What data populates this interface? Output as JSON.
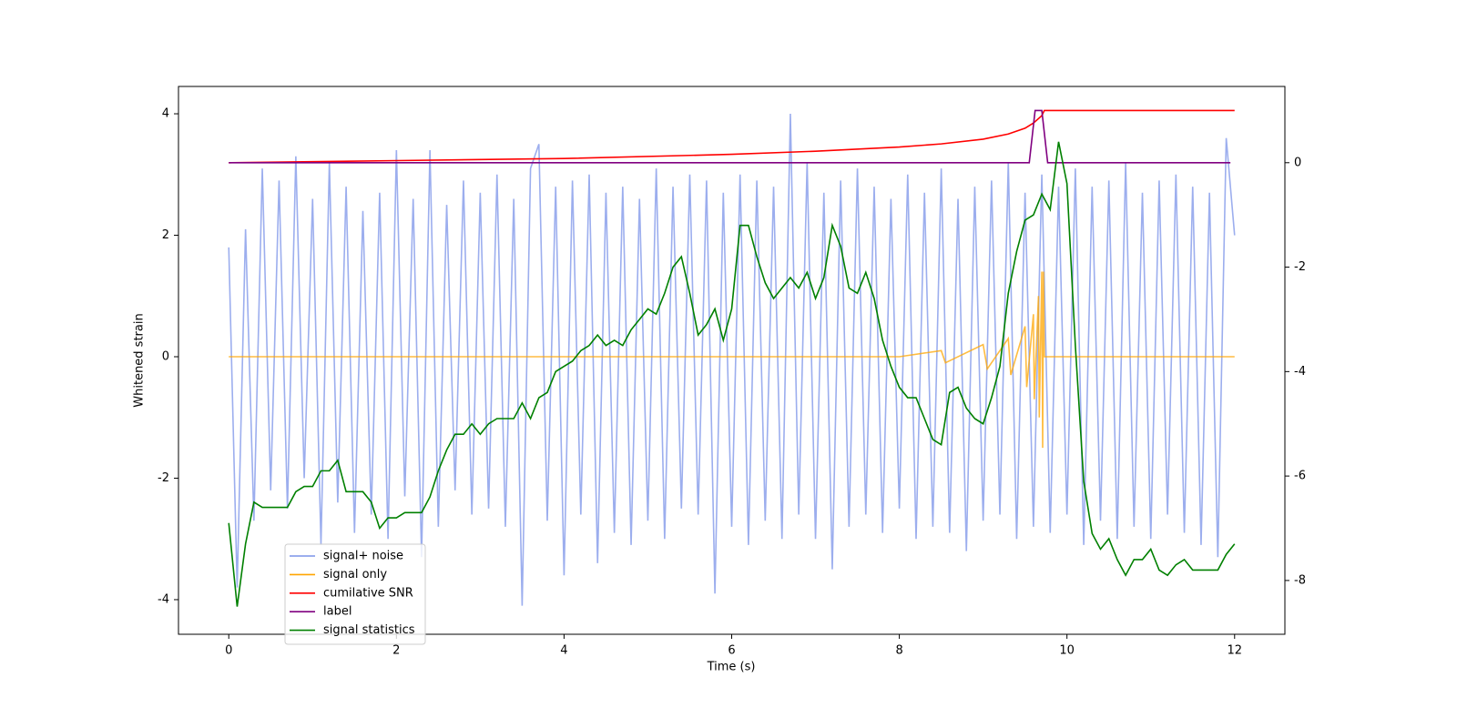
{
  "chart_data": {
    "type": "line",
    "xlabel": "Time (s)",
    "ylabel": "Whitened strain",
    "xlim": [
      -0.6,
      12.6
    ],
    "ylim": [
      -4.57,
      4.45
    ],
    "y2lim": [
      -9.03,
      1.46
    ],
    "xticks": [
      0,
      2,
      4,
      6,
      8,
      10,
      12
    ],
    "yticks": [
      -4,
      -2,
      0,
      2,
      4
    ],
    "y2ticks": [
      -8,
      -6,
      -4,
      -2,
      0
    ],
    "legend_loc": "lower left",
    "x": [
      0,
      0.1,
      0.2,
      0.3,
      0.4,
      0.5,
      0.6,
      0.7,
      0.8,
      0.9,
      1,
      1.1,
      1.2,
      1.3,
      1.4,
      1.5,
      1.6,
      1.7,
      1.8,
      1.9,
      2,
      2.1,
      2.2,
      2.3,
      2.4,
      2.5,
      2.6,
      2.7,
      2.8,
      2.9,
      3,
      3.1,
      3.2,
      3.3,
      3.4,
      3.5,
      3.6,
      3.7,
      3.8,
      3.9,
      4,
      4.1,
      4.2,
      4.3,
      4.4,
      4.5,
      4.6,
      4.7,
      4.8,
      4.9,
      5,
      5.1,
      5.2,
      5.3,
      5.4,
      5.5,
      5.6,
      5.7,
      5.8,
      5.9,
      6,
      6.1,
      6.2,
      6.3,
      6.4,
      6.5,
      6.6,
      6.7,
      6.8,
      6.9,
      7,
      7.1,
      7.2,
      7.3,
      7.4,
      7.5,
      7.6,
      7.7,
      7.8,
      7.9,
      8,
      8.1,
      8.2,
      8.3,
      8.4,
      8.5,
      8.6,
      8.7,
      8.8,
      8.9,
      9,
      9.1,
      9.2,
      9.3,
      9.4,
      9.5,
      9.6,
      9.7,
      9.8,
      9.9,
      10,
      10.1,
      10.2,
      10.3,
      10.4,
      10.5,
      10.6,
      10.7,
      10.8,
      10.9,
      11,
      11.1,
      11.2,
      11.3,
      11.4,
      11.5,
      11.6,
      11.7,
      11.8,
      11.9,
      12
    ],
    "series": [
      {
        "name": "signal+ noise",
        "color": "#7b93e8",
        "axis": "y",
        "values": [
          1.8,
          -3.8,
          2.1,
          -2.7,
          3.1,
          -2.2,
          2.9,
          -2.5,
          3.3,
          -2.0,
          2.6,
          -3.1,
          3.2,
          -2.4,
          2.8,
          -2.9,
          2.4,
          -2.6,
          2.7,
          -3.0,
          3.4,
          -2.3,
          2.6,
          -3.3,
          3.4,
          -2.8,
          2.5,
          -2.2,
          2.9,
          -2.6,
          2.7,
          -2.5,
          3.0,
          -2.8,
          2.6,
          -4.1,
          3.1,
          3.5,
          -2.7,
          2.8,
          -3.6,
          2.9,
          -2.6,
          3.0,
          -3.4,
          2.7,
          -2.9,
          2.8,
          -3.1,
          2.6,
          -2.7,
          3.1,
          -3.0,
          2.8,
          -2.5,
          3.0,
          -2.6,
          2.9,
          -3.9,
          2.7,
          -2.8,
          3.0,
          -3.1,
          2.9,
          -2.7,
          2.8,
          -3.0,
          4.0,
          -2.6,
          3.2,
          -3.0,
          2.7,
          -3.5,
          2.9,
          -2.8,
          3.1,
          -2.6,
          2.8,
          -2.9,
          2.6,
          -2.5,
          3.0,
          -3.0,
          2.7,
          -2.8,
          3.1,
          -2.9,
          2.6,
          -3.2,
          2.8,
          -2.7,
          2.9,
          -2.6,
          3.2,
          -3.0,
          2.7,
          -2.8,
          3.0,
          -2.9,
          2.8,
          -2.6,
          3.1,
          -3.1,
          2.8,
          -2.7,
          2.9,
          -3.0,
          3.2,
          -2.8,
          2.7,
          -3.0,
          2.9,
          -2.6,
          3.0,
          -2.9,
          2.8,
          -3.1,
          2.7,
          -3.3,
          3.6,
          2.0
        ]
      },
      {
        "name": "signal only",
        "color": "#ffa500",
        "axis": "y",
        "x": [
          0,
          8,
          8.5,
          8.55,
          9,
          9.05,
          9.3,
          9.33,
          9.5,
          9.52,
          9.6,
          9.61,
          9.66,
          9.67,
          9.7,
          9.71,
          9.72,
          9.73,
          9.74,
          12
        ],
        "values": [
          0,
          0,
          0.1,
          -0.1,
          0.2,
          -0.2,
          0.3,
          -0.3,
          0.5,
          -0.5,
          0.7,
          -0.7,
          1.0,
          -1.0,
          1.4,
          -1.5,
          1.4,
          0,
          0,
          0
        ]
      },
      {
        "name": "cumilative SNR",
        "color": "#ff0000",
        "axis": "y2",
        "x": [
          0,
          2,
          4,
          6,
          7,
          8,
          8.5,
          9,
          9.3,
          9.5,
          9.6,
          9.7,
          9.73,
          12
        ],
        "values": [
          0,
          0.04,
          0.08,
          0.16,
          0.22,
          0.3,
          0.36,
          0.45,
          0.55,
          0.66,
          0.76,
          0.9,
          1.0,
          1.0
        ]
      },
      {
        "name": "label",
        "color": "#800080",
        "axis": "y2",
        "x": [
          0,
          9.55,
          9.62,
          9.7,
          9.77,
          11.95
        ],
        "values": [
          0,
          0,
          1,
          1,
          0,
          0
        ]
      },
      {
        "name": "signal statistics",
        "color": "#008000",
        "axis": "y2",
        "values": [
          -6.9,
          -8.5,
          -7.3,
          -6.5,
          -6.6,
          -6.6,
          -6.6,
          -6.6,
          -6.3,
          -6.2,
          -6.2,
          -5.9,
          -5.9,
          -5.7,
          -6.3,
          -6.3,
          -6.3,
          -6.5,
          -7.0,
          -6.8,
          -6.8,
          -6.7,
          -6.7,
          -6.7,
          -6.4,
          -5.9,
          -5.5,
          -5.2,
          -5.2,
          -5.0,
          -5.2,
          -5.0,
          -4.9,
          -4.9,
          -4.9,
          -4.6,
          -4.9,
          -4.5,
          -4.4,
          -4.0,
          -3.9,
          -3.8,
          -3.6,
          -3.5,
          -3.3,
          -3.5,
          -3.4,
          -3.5,
          -3.2,
          -3.0,
          -2.8,
          -2.9,
          -2.5,
          -2.0,
          -1.8,
          -2.5,
          -3.3,
          -3.1,
          -2.8,
          -3.4,
          -2.8,
          -1.2,
          -1.2,
          -1.8,
          -2.3,
          -2.6,
          -2.4,
          -2.2,
          -2.4,
          -2.1,
          -2.6,
          -2.2,
          -1.2,
          -1.6,
          -2.4,
          -2.5,
          -2.1,
          -2.6,
          -3.4,
          -3.9,
          -4.3,
          -4.5,
          -4.5,
          -4.9,
          -5.3,
          -5.4,
          -4.4,
          -4.3,
          -4.7,
          -4.9,
          -5.0,
          -4.5,
          -3.9,
          -2.5,
          -1.7,
          -1.1,
          -1.0,
          -0.6,
          -0.9,
          0.4,
          -0.4,
          -3.5,
          -6.1,
          -7.1,
          -7.4,
          -7.2,
          -7.6,
          -7.9,
          -7.6,
          -7.6,
          -7.4,
          -7.8,
          -7.9,
          -7.7,
          -7.6,
          -7.8,
          -7.8,
          -7.8,
          -7.8,
          -7.5,
          -7.3
        ]
      }
    ]
  }
}
